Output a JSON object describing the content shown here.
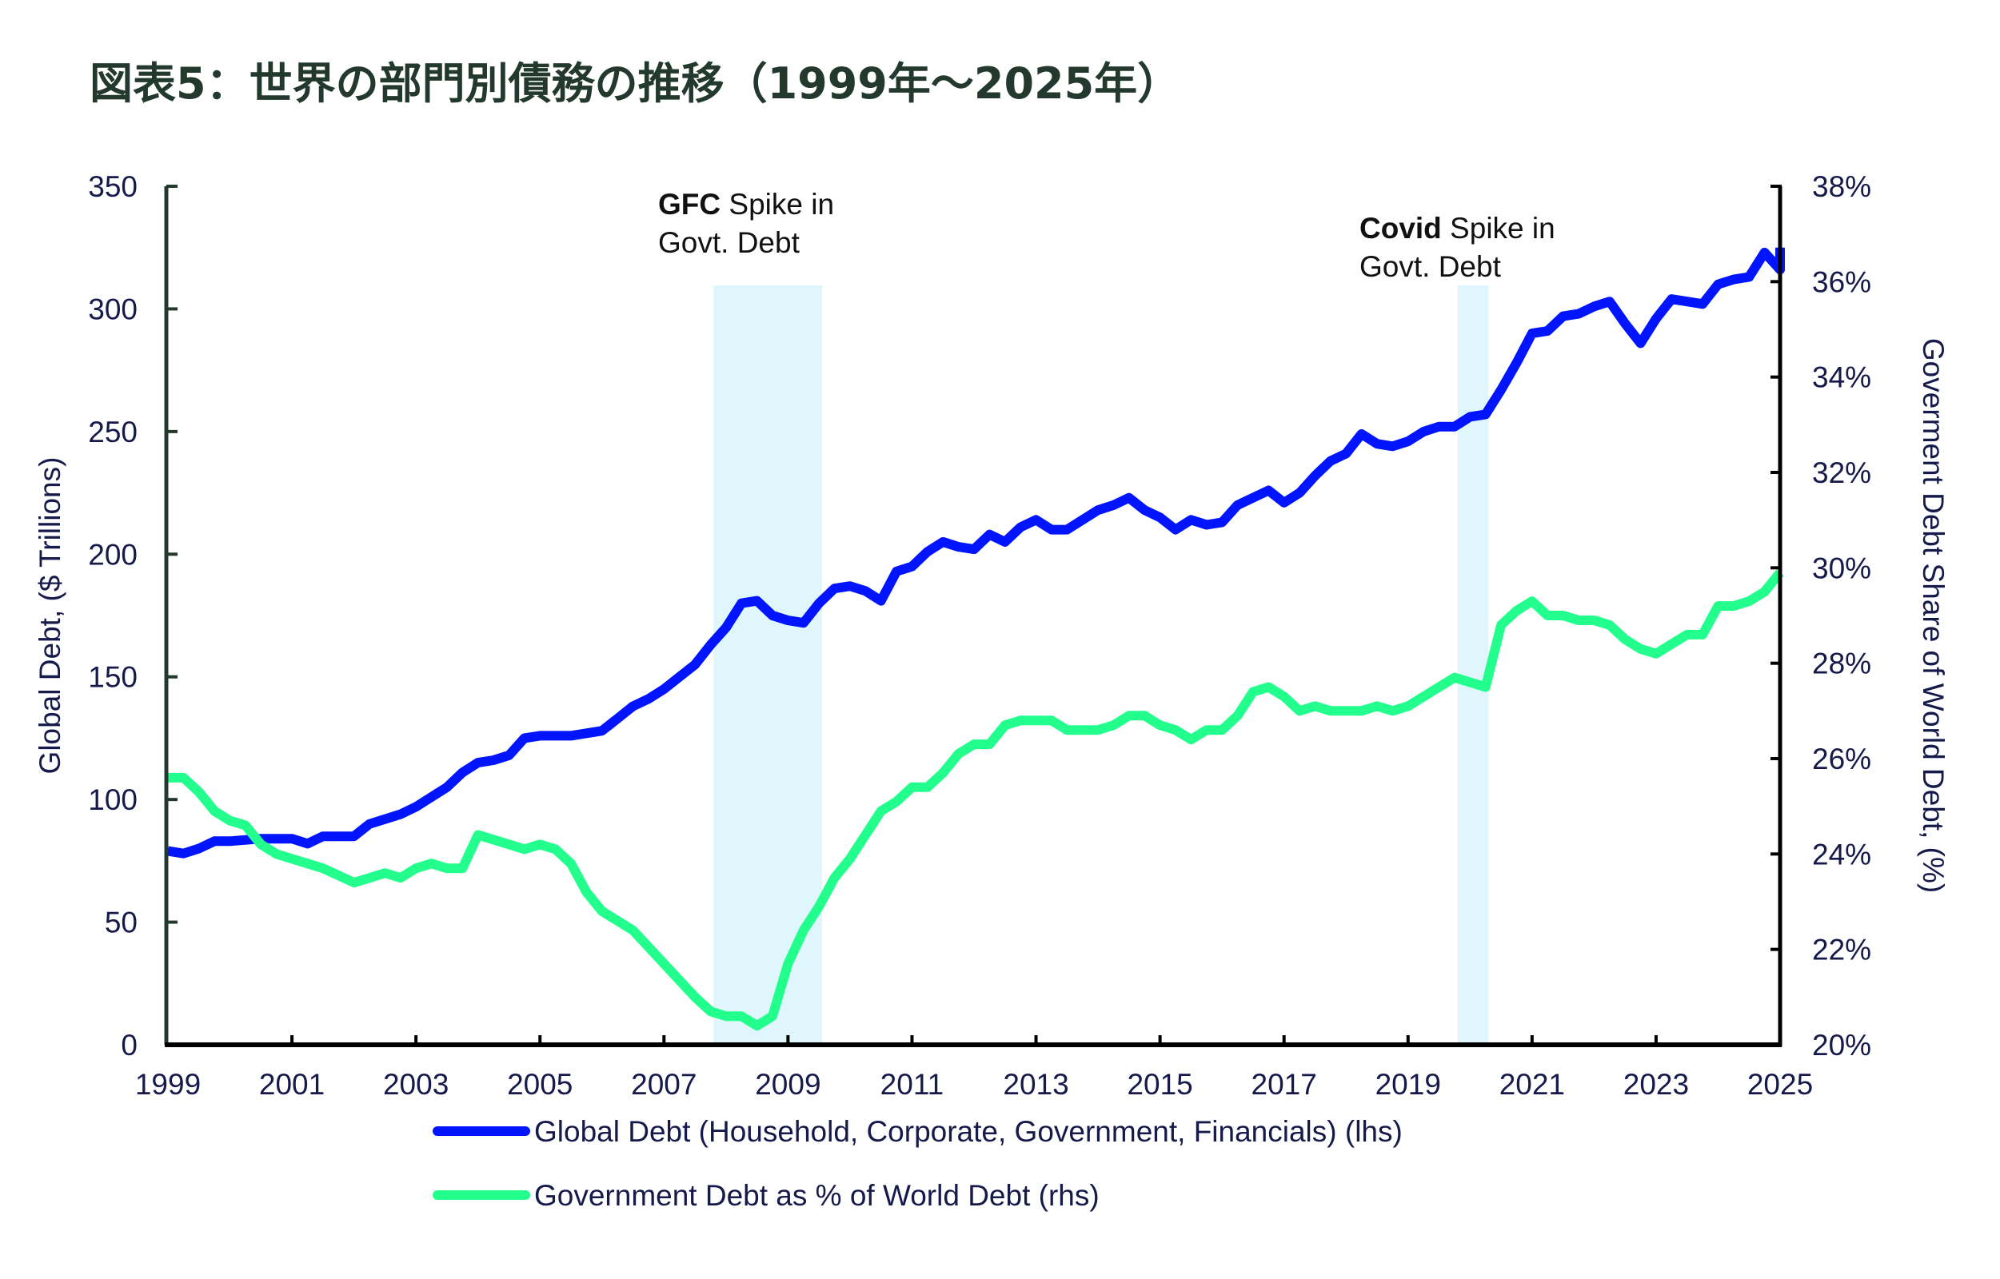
{
  "title": "図表5：世界の部門別債務の推移（1999年～2025年）",
  "colors": {
    "title": "#24392e",
    "global_debt": "#0014ff",
    "gov_share": "#22ff8c",
    "shade": "#e0f6fd",
    "left_axis": "#24392e",
    "right_axis": "#000000",
    "text": "#161a4a"
  },
  "chart_data": {
    "type": "line",
    "title": "図表5：世界の部門別債務の推移（1999年～2025年）",
    "xlim": [
      1999,
      2025
    ],
    "x_ticks": [
      "1999",
      "2001",
      "2003",
      "2005",
      "2007",
      "2009",
      "2011",
      "2013",
      "2015",
      "2017",
      "2019",
      "2021",
      "2023",
      "2025"
    ],
    "y_left": {
      "label": "Global Debt, ($ Trillions)",
      "lim": [
        0,
        350
      ],
      "ticks": [
        "0",
        "50",
        "100",
        "150",
        "200",
        "250",
        "300",
        "350"
      ]
    },
    "y_right": {
      "label": "Goverment Debt Share of World Debt, (%)",
      "lim": [
        20,
        38
      ],
      "ticks": [
        "20%",
        "22%",
        "24%",
        "26%",
        "28%",
        "30%",
        "32%",
        "34%",
        "36%",
        "38%"
      ]
    },
    "grid": false,
    "legend_position": "bottom",
    "shaded_regions": [
      {
        "name": "gfc",
        "x_start": 2007.8,
        "x_end": 2009.55,
        "label_bold": "GFC",
        "label_rest": "Spike in",
        "label_line2": "Govt.  Debt"
      },
      {
        "name": "covid",
        "x_start": 2019.8,
        "x_end": 2020.3,
        "label_bold": "Covid",
        "label_rest": "Spike in",
        "label_line2": "Govt.  Debt"
      }
    ],
    "series": [
      {
        "name": "Global Debt (Household, Corporate, Government, Financials) (lhs)",
        "axis": "left",
        "x": [
          1999,
          1999.25,
          1999.5,
          1999.75,
          2000,
          2000.5,
          2001,
          2001.25,
          2001.5,
          2002,
          2002.25,
          2002.75,
          2003,
          2003.25,
          2003.5,
          2003.75,
          2004,
          2004.25,
          2004.5,
          2004.75,
          2005,
          2005.5,
          2006,
          2006.25,
          2006.5,
          2006.75,
          2007,
          2007.25,
          2007.5,
          2007.75,
          2008,
          2008.25,
          2008.5,
          2008.75,
          2009,
          2009.25,
          2009.5,
          2009.75,
          2010,
          2010.25,
          2010.5,
          2010.75,
          2011,
          2011.25,
          2011.5,
          2011.75,
          2012,
          2012.25,
          2012.5,
          2012.75,
          2013,
          2013.25,
          2013.5,
          2013.75,
          2014,
          2014.25,
          2014.5,
          2014.75,
          2015,
          2015.25,
          2015.5,
          2015.75,
          2016,
          2016.25,
          2016.5,
          2016.75,
          2017,
          2017.25,
          2017.5,
          2017.75,
          2018,
          2018.25,
          2018.5,
          2018.75,
          2019,
          2019.25,
          2019.5,
          2019.75,
          2020,
          2020.25,
          2020.5,
          2020.75,
          2021,
          2021.25,
          2021.5,
          2021.75,
          2022,
          2022.25,
          2022.5,
          2022.75,
          2023,
          2023.25,
          2023.5,
          2023.75,
          2024,
          2024.25,
          2024.5,
          2024.75,
          2025,
          2025.1
        ],
        "values": [
          79,
          78,
          80,
          83,
          83,
          84,
          84,
          82,
          85,
          85,
          90,
          94,
          97,
          101,
          105,
          111,
          115,
          116,
          118,
          125,
          126,
          126,
          128,
          133,
          138,
          141,
          145,
          150,
          155,
          163,
          170,
          180,
          181,
          175,
          173,
          172,
          180,
          186,
          187,
          185,
          181,
          193,
          195,
          201,
          205,
          203,
          202,
          208,
          205,
          211,
          214,
          210,
          210,
          214,
          218,
          220,
          223,
          218,
          215,
          210,
          214,
          212,
          213,
          220,
          223,
          226,
          221,
          225,
          232,
          238,
          241,
          249,
          245,
          244,
          246,
          250,
          252,
          252,
          256,
          257,
          267,
          278,
          290,
          291,
          297,
          298,
          301,
          303,
          294,
          286,
          296,
          304,
          303,
          302,
          310,
          312,
          313,
          323,
          316,
          325
        ]
      },
      {
        "name": "Government Debt as % of World Debt (rhs)",
        "axis": "right",
        "x": [
          1999,
          1999.25,
          1999.5,
          1999.75,
          2000,
          2000.25,
          2000.5,
          2000.75,
          2001,
          2001.5,
          2002,
          2002.25,
          2002.5,
          2002.75,
          2003,
          2003.25,
          2003.5,
          2003.75,
          2004,
          2004.25,
          2004.5,
          2004.75,
          2005,
          2005.25,
          2005.5,
          2005.75,
          2006,
          2006.5,
          2007,
          2007.5,
          2007.75,
          2008,
          2008.25,
          2008.5,
          2008.75,
          2009,
          2009.25,
          2009.5,
          2009.75,
          2010,
          2010.25,
          2010.5,
          2010.75,
          2011,
          2011.25,
          2011.5,
          2011.75,
          2012,
          2012.25,
          2012.5,
          2012.75,
          2013,
          2013.25,
          2013.5,
          2014,
          2014.25,
          2014.5,
          2014.75,
          2015,
          2015.25,
          2015.5,
          2015.75,
          2016,
          2016.25,
          2016.5,
          2016.75,
          2017,
          2017.25,
          2017.5,
          2017.75,
          2018,
          2018.25,
          2018.5,
          2018.75,
          2019,
          2019.25,
          2019.5,
          2019.75,
          2020,
          2020.25,
          2020.5,
          2020.75,
          2021,
          2021.25,
          2021.5,
          2021.75,
          2022,
          2022.25,
          2022.5,
          2022.75,
          2023,
          2023.25,
          2023.5,
          2023.75,
          2024,
          2024.25,
          2024.5,
          2024.75,
          2025,
          2025.1
        ],
        "values": [
          25.6,
          25.6,
          25.3,
          24.9,
          24.7,
          24.6,
          24.2,
          24.0,
          23.9,
          23.7,
          23.4,
          23.5,
          23.6,
          23.5,
          23.7,
          23.8,
          23.7,
          23.7,
          24.4,
          24.3,
          24.2,
          24.1,
          24.2,
          24.1,
          23.8,
          23.2,
          22.8,
          22.4,
          21.7,
          21.0,
          20.7,
          20.6,
          20.6,
          20.4,
          20.6,
          21.7,
          22.4,
          22.9,
          23.5,
          23.9,
          24.4,
          24.9,
          25.1,
          25.4,
          25.4,
          25.7,
          26.1,
          26.3,
          26.3,
          26.7,
          26.8,
          26.8,
          26.8,
          26.6,
          26.6,
          26.7,
          26.9,
          26.9,
          26.7,
          26.6,
          26.4,
          26.6,
          26.6,
          26.9,
          27.4,
          27.5,
          27.3,
          27.0,
          27.1,
          27.0,
          27.0,
          27.0,
          27.1,
          27.0,
          27.1,
          27.3,
          27.5,
          27.7,
          27.6,
          27.5,
          28.8,
          29.1,
          29.3,
          29.0,
          29.0,
          28.9,
          28.9,
          28.8,
          28.5,
          28.3,
          28.2,
          28.4,
          28.6,
          28.6,
          29.2,
          29.2,
          29.3,
          29.5,
          29.9,
          29.9
        ]
      }
    ]
  }
}
